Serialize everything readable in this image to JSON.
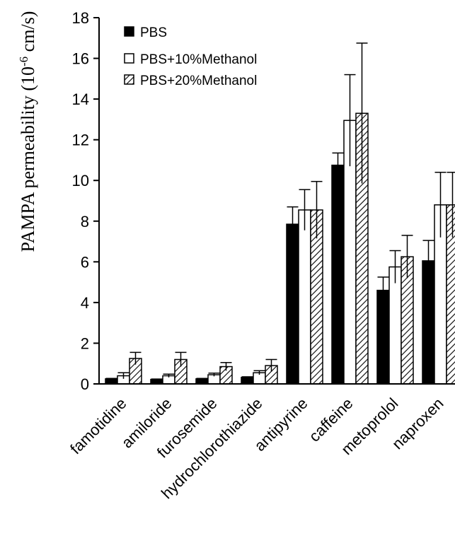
{
  "chart_data": {
    "type": "bar",
    "title": "",
    "xlabel": "",
    "ylabel": {
      "text": "PAMPA permeability (10",
      "superscript": "-6",
      "unit": " cm/s)"
    },
    "ylim": [
      0,
      18
    ],
    "yticks": [
      "0",
      "2",
      "4",
      "6",
      "8",
      "10",
      "12",
      "14",
      "16",
      "18"
    ],
    "grid": false,
    "legend_position": "top-left",
    "categories": [
      "famotidine",
      "amiloride",
      "furosemide",
      "hydrochlorothiazide",
      "antipyrine",
      "caffeine",
      "metoprolol",
      "naproxen"
    ],
    "series": [
      {
        "name": "PBS",
        "fill": "solid-black",
        "values": [
          0.25,
          0.22,
          0.25,
          0.32,
          7.85,
          10.75,
          4.6,
          6.05
        ],
        "errors": [
          0.02,
          0.02,
          0.02,
          0.03,
          0.85,
          0.6,
          0.65,
          1.0
        ]
      },
      {
        "name": "PBS+10%Methanol",
        "fill": "white",
        "values": [
          0.4,
          0.4,
          0.45,
          0.55,
          8.55,
          12.95,
          5.75,
          8.8
        ],
        "errors": [
          0.15,
          0.08,
          0.08,
          0.1,
          1.0,
          2.25,
          0.8,
          1.6
        ]
      },
      {
        "name": "PBS+20%Methanol",
        "fill": "hatched",
        "values": [
          1.25,
          1.2,
          0.85,
          0.9,
          8.55,
          13.3,
          6.25,
          8.8
        ],
        "errors": [
          0.3,
          0.35,
          0.2,
          0.3,
          1.4,
          3.45,
          1.05,
          1.6
        ]
      }
    ]
  }
}
